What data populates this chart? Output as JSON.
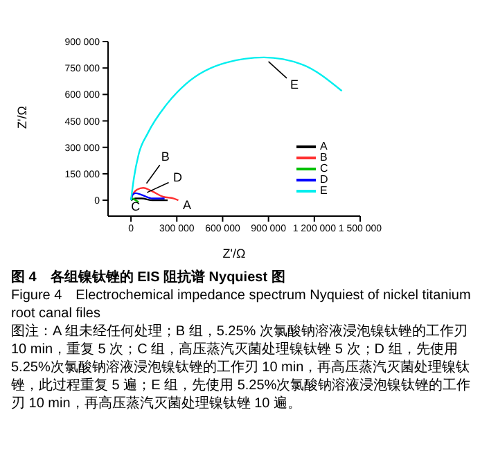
{
  "chart_data": {
    "type": "line",
    "xlabel": "Z'/Ω",
    "ylabel": "Z'/Ω",
    "xlim": [
      -150000,
      1500000
    ],
    "ylim": [
      -90000,
      900000
    ],
    "xticks": [
      {
        "value": 0,
        "label": "0"
      },
      {
        "value": 300000,
        "label": "300 000"
      },
      {
        "value": 600000,
        "label": "600 000"
      },
      {
        "value": 900000,
        "label": "900 000"
      },
      {
        "value": 1200000,
        "label": "1 200 000"
      },
      {
        "value": 1500000,
        "label": "1 500 000"
      }
    ],
    "yticks": [
      {
        "value": 0,
        "label": "0"
      },
      {
        "value": 150000,
        "label": "150 000"
      },
      {
        "value": 300000,
        "label": "300 000"
      },
      {
        "value": 450000,
        "label": "450 000"
      },
      {
        "value": 600000,
        "label": "600 000"
      },
      {
        "value": 750000,
        "label": "750 000"
      },
      {
        "value": 900000,
        "label": "900 000"
      }
    ],
    "grid": false,
    "legend": "right",
    "marker": "none",
    "line_style": "solid",
    "series": [
      {
        "name": "A",
        "color": "#000000",
        "x": [
          0,
          30000,
          70000,
          140000,
          240000
        ],
        "values": [
          0,
          10000,
          10000,
          0,
          0
        ]
      },
      {
        "name": "B",
        "color": "#ff3030",
        "x": [
          0,
          10000,
          40000,
          80000,
          140000,
          210000,
          280000,
          310000
        ],
        "values": [
          0,
          30000,
          60000,
          70000,
          50000,
          20000,
          10000,
          0
        ]
      },
      {
        "name": "C",
        "color": "#00c000",
        "x": [
          0,
          10000,
          30000,
          50000
        ],
        "values": [
          0,
          10000,
          0,
          -10000
        ]
      },
      {
        "name": "D",
        "color": "#0000ff",
        "x": [
          0,
          10000,
          30000,
          70000,
          140000,
          220000
        ],
        "values": [
          0,
          30000,
          40000,
          30000,
          10000,
          10000
        ]
      },
      {
        "name": "E",
        "color": "#00eeee",
        "x": [
          0,
          20000,
          50000,
          110000,
          230000,
          360000,
          620000,
          870000,
          1120000,
          1380000
        ],
        "values": [
          0,
          130000,
          260000,
          380000,
          540000,
          660000,
          780000,
          810000,
          770000,
          620000
        ]
      }
    ],
    "annotations": [
      {
        "text": "E",
        "x": 870000,
        "y": 810000
      },
      {
        "text": "B",
        "x": 80000,
        "y": 70000
      },
      {
        "text": "D",
        "x": 70000,
        "y": 30000
      },
      {
        "text": "C",
        "x": 30000,
        "y": 0
      },
      {
        "text": "A",
        "x": 240000,
        "y": 0
      },
      "图 4　各组镍钛锉的 EIS 阻抗谱 Nyquiest 图",
      "Figure 4　Electrochemical impedance spectrum Nyquiest of nickel titanium root canal files",
      "图注：A 组未经任何处理；B 组，5.25% 次氯酸钠溶液浸泡镍钛锉的工作刃 10 min，重复 5 次；C 组，高压蒸汽灭菌处理镍钛锉 5 次；D 组，先使用 5.25%次氯酸钠溶液浸泡镍钛锉的工作刃 10 min，再高压蒸汽灭菌处理镍钛锉，此过程重复 5 遍；E 组，先使用 5.25%次氯酸钠溶液浸泡镍钛锉的工作刃 10 min，再高压蒸汽灭菌处理镍钛锉 10 遍。"
    ]
  }
}
